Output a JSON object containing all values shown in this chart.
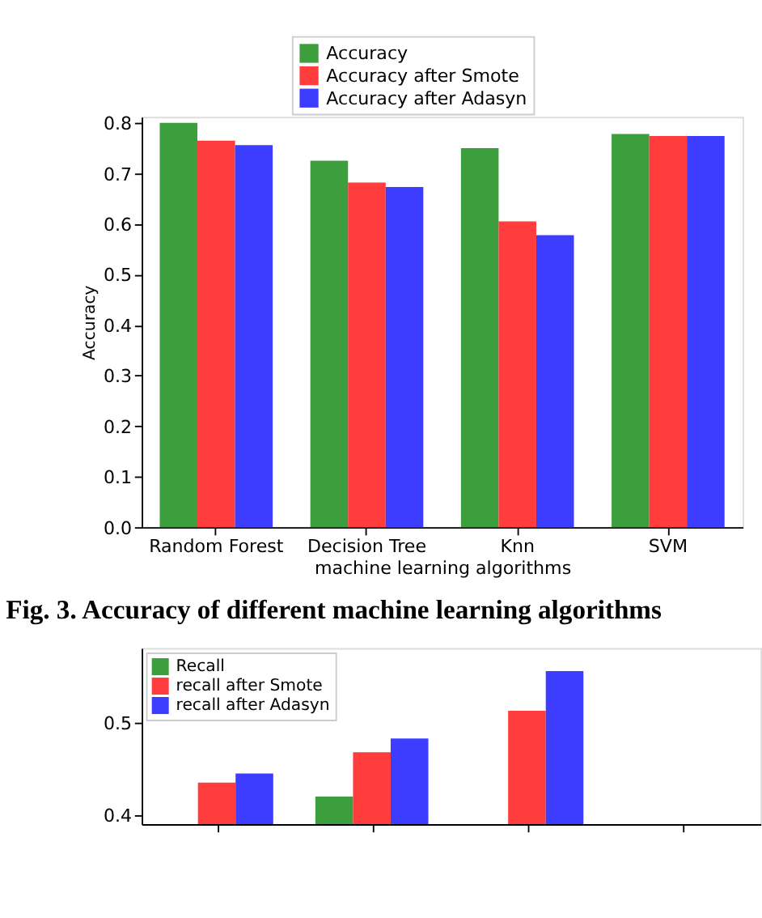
{
  "chart_data": [
    {
      "type": "bar",
      "xlabel": "machine learning algorithms",
      "ylabel": "Accuracy",
      "categories": [
        "Random Forest",
        "Decision Tree",
        "Knn",
        "SVM"
      ],
      "series": [
        {
          "name": "Accuracy",
          "color": "#339933",
          "values": [
            0.8,
            0.725,
            0.75,
            0.778
          ]
        },
        {
          "name": "Accuracy after Smote",
          "color": "#ff3333",
          "values": [
            0.765,
            0.682,
            0.605,
            0.774
          ]
        },
        {
          "name": "Accuracy after Adasyn",
          "color": "#3333ff",
          "values": [
            0.756,
            0.673,
            0.578,
            0.774
          ]
        }
      ],
      "ylim": [
        0,
        0.812
      ],
      "yticks": [
        {
          "value": 0,
          "label": "0.0"
        },
        0.1,
        0.2,
        0.3,
        0.4,
        0.5,
        0.6,
        0.7,
        0.8
      ],
      "legend": "top",
      "grid": false,
      "annotations": [
        "Fig. 3. Accuracy of different machine learning algorithms"
      ]
    },
    {
      "type": "bar",
      "categories": [
        null,
        null,
        null,
        null
      ],
      "series": [
        {
          "name": "Recall",
          "color": "#339933",
          "values": [
            null,
            0.42,
            null,
            null
          ]
        },
        {
          "name": "recall after Smote",
          "color": "#ff3333",
          "values": [
            0.435,
            0.468,
            0.513,
            null
          ]
        },
        {
          "name": "recall after Adasyn",
          "color": "#3333ff",
          "values": [
            0.445,
            0.483,
            0.556,
            null
          ]
        }
      ],
      "ylim": [
        0.39,
        0.581
      ],
      "yticks": [
        0.4,
        0.5
      ],
      "legend": "top left",
      "grid": false
    }
  ]
}
